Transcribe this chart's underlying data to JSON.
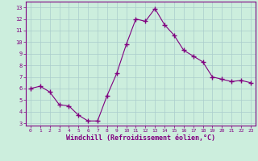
{
  "x": [
    0,
    1,
    2,
    3,
    4,
    5,
    6,
    7,
    8,
    9,
    10,
    11,
    12,
    13,
    14,
    15,
    16,
    17,
    18,
    19,
    20,
    21,
    22,
    23
  ],
  "y": [
    6.0,
    6.2,
    5.7,
    4.6,
    4.5,
    3.7,
    3.2,
    3.2,
    5.4,
    7.3,
    9.8,
    12.0,
    11.8,
    12.9,
    11.5,
    10.6,
    9.3,
    8.8,
    8.3,
    7.0,
    6.8,
    6.6,
    6.7,
    6.5
  ],
  "line_color": "#800080",
  "marker": "+",
  "marker_size": 4.0,
  "line_width": 0.8,
  "xlabel": "Windchill (Refroidissement éolien,°C)",
  "xlabel_fontsize": 6,
  "ylabel_ticks": [
    3,
    4,
    5,
    6,
    7,
    8,
    9,
    10,
    11,
    12,
    13
  ],
  "xtick_labels": [
    "0",
    "1",
    "2",
    "3",
    "4",
    "5",
    "6",
    "7",
    "8",
    "9",
    "10",
    "11",
    "12",
    "13",
    "14",
    "15",
    "16",
    "17",
    "18",
    "19",
    "20",
    "21",
    "22",
    "23"
  ],
  "xlim": [
    -0.5,
    23.5
  ],
  "ylim": [
    2.8,
    13.5
  ],
  "bg_color": "#cceedd",
  "grid_color": "#aacccc",
  "tick_color": "#800080",
  "tick_label_color": "#800080",
  "spine_color": "#800080"
}
